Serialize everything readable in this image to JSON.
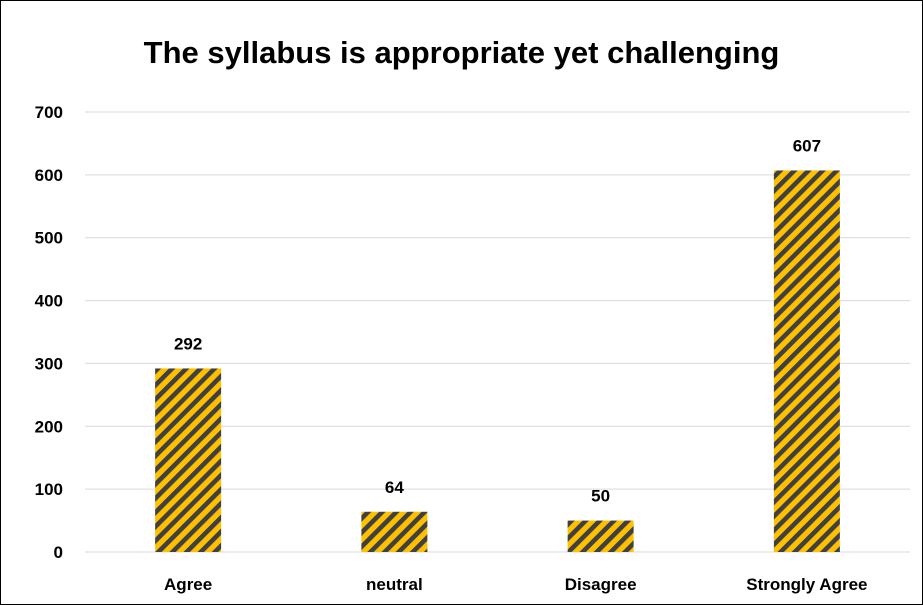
{
  "chart_data": {
    "type": "bar",
    "title": "The syllabus is appropriate yet challenging",
    "categories": [
      "Agree",
      "neutral",
      "Disagree",
      "Strongly Agree"
    ],
    "values": [
      292,
      64,
      50,
      607
    ],
    "data_labels": [
      "292",
      "64",
      "50",
      "607"
    ],
    "ylim": [
      0,
      700
    ],
    "yticks": [
      "0",
      "100",
      "200",
      "300",
      "400",
      "500",
      "600",
      "700"
    ],
    "xlabel": "",
    "ylabel": "",
    "grid": true,
    "legend": "none",
    "colors": {
      "bar_fill": "#FFC000",
      "bar_stripe": "#404040",
      "grid": "#d9d9d9",
      "text": "#000000"
    }
  }
}
